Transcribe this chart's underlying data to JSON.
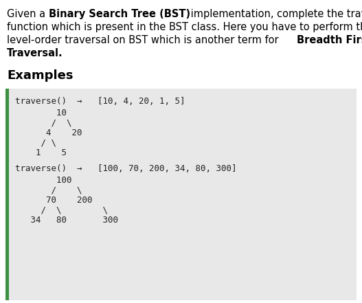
{
  "page_bg": "#ffffff",
  "code_bg": "#e8e8e8",
  "left_bar_color": "#3d9142",
  "examples_label": "Examples",
  "header_font_size": 10.5,
  "code_font_size": 9.0,
  "examples_font_size": 13,
  "example1_header": "traverse()  →   [10, 4, 20, 1, 5]",
  "example1_tree": [
    "        10",
    "       /  \\",
    "      4    20",
    "     / \\",
    "    1    5"
  ],
  "example2_header": "traverse()  →   [100, 70, 200, 34, 80, 300]",
  "example2_tree": [
    "        100",
    "       /    \\",
    "      70    200",
    "     /  \\        \\",
    "   34   80       300"
  ],
  "header_lines": [
    [
      [
        "Given a ",
        false
      ],
      [
        "Binary Search Tree (BST)",
        true
      ],
      [
        " implementation, complete the traverse",
        false
      ]
    ],
    [
      [
        "function which is present in the BST class. Here you have to perform the",
        false
      ]
    ],
    [
      [
        "level-order traversal on BST which is another term for ",
        false
      ],
      [
        "Breadth First",
        true
      ]
    ],
    [
      [
        "Traversal.",
        true
      ]
    ]
  ]
}
